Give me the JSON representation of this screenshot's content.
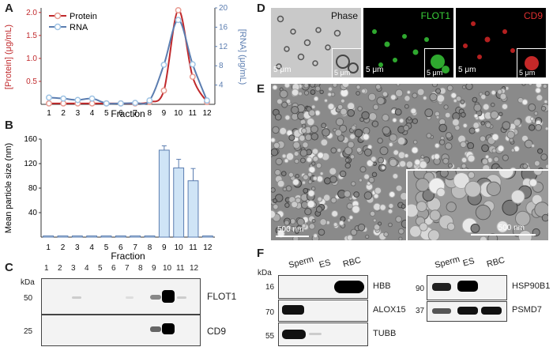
{
  "panels": {
    "A": "A",
    "B": "B",
    "C": "C",
    "D": "D",
    "E": "E",
    "F": "F"
  },
  "chart_data": [
    {
      "type": "line",
      "x": [
        1,
        2,
        3,
        4,
        5,
        6,
        7,
        8,
        9,
        10,
        11,
        12
      ],
      "categories": [
        "1",
        "2",
        "3",
        "4",
        "5",
        "6",
        "7",
        "8",
        "9",
        "10",
        "11",
        "12"
      ],
      "xlabel": "Fraction",
      "ylabel": "[Protein] (μg/mL)",
      "y2label": "[RNA] (μg/mL)",
      "ylim": [
        0,
        2.1
      ],
      "y2lim": [
        0,
        20
      ],
      "yticks": [
        "0.5",
        "1.0",
        "1.5",
        "2.0"
      ],
      "y2ticks": [
        "4",
        "8",
        "12",
        "16",
        "20"
      ],
      "legend": "top-left",
      "series": [
        {
          "name": "Protein",
          "axis": "left",
          "color": "#c0292c",
          "marker_color": "#e89a90",
          "values": [
            0.02,
            0.02,
            0.02,
            0.02,
            0.02,
            0.02,
            0.02,
            0.05,
            0.3,
            2.05,
            0.6,
            0.05
          ]
        },
        {
          "name": "RNA",
          "axis": "right",
          "color": "#5b7db0",
          "marker_color": "#9ec3e4",
          "values": [
            1.4,
            1.2,
            0.9,
            1.2,
            0.2,
            0.2,
            0.3,
            0.8,
            8.2,
            17.5,
            8.3,
            0.8
          ]
        }
      ]
    },
    {
      "type": "bar",
      "categories": [
        "1",
        "2",
        "3",
        "4",
        "5",
        "6",
        "7",
        "8",
        "9",
        "10",
        "11",
        "12"
      ],
      "values": [
        2,
        2,
        2,
        2,
        2,
        2,
        2,
        2,
        142,
        113,
        92,
        2
      ],
      "errors": [
        0,
        0,
        0,
        0,
        0,
        0,
        0,
        0,
        7,
        14,
        20,
        0
      ],
      "xlabel": "Fraction",
      "ylabel": "Mean particle size (nm)",
      "ylim": [
        0,
        160
      ],
      "yticks": [
        "40",
        "80",
        "120",
        "160"
      ],
      "bar_color": "#cfe4f6",
      "edge_color": "#5b7db0"
    }
  ],
  "blotC": {
    "lanes": [
      "1",
      "2",
      "3",
      "4",
      "5",
      "6",
      "7",
      "8",
      "9",
      "10",
      "11",
      "12"
    ],
    "kda_label": "kDa",
    "rows": [
      {
        "marker": "50",
        "label": "FLOT1"
      },
      {
        "marker": "25",
        "label": "CD9"
      }
    ]
  },
  "micrographsD": [
    {
      "label": "Phase",
      "scale": "5 μm",
      "inset_scale": "5 μm",
      "label_color": "#111111"
    },
    {
      "label": "FLOT1",
      "scale": "5 μm",
      "inset_scale": "5 μm",
      "label_color": "#3ad13a"
    },
    {
      "label": "CD9",
      "scale": "5 μm",
      "inset_scale": "5 μm",
      "label_color": "#e03030"
    }
  ],
  "emE": {
    "scale": "500 nm",
    "inset_scale": "500 nm"
  },
  "blotF": {
    "kda_label": "kDa",
    "left": {
      "lanes": [
        "Sperm",
        "ES",
        "RBC"
      ],
      "rows": [
        {
          "marker": "16",
          "label": "HBB"
        },
        {
          "marker": "70",
          "label": "ALOX15"
        },
        {
          "marker": "55",
          "label": "TUBB"
        }
      ]
    },
    "right": {
      "lanes": [
        "Sperm",
        "ES",
        "RBC"
      ],
      "rows": [
        {
          "marker": "90",
          "label": "HSP90B1"
        },
        {
          "marker": "37",
          "label": "PSMD7"
        }
      ]
    }
  }
}
